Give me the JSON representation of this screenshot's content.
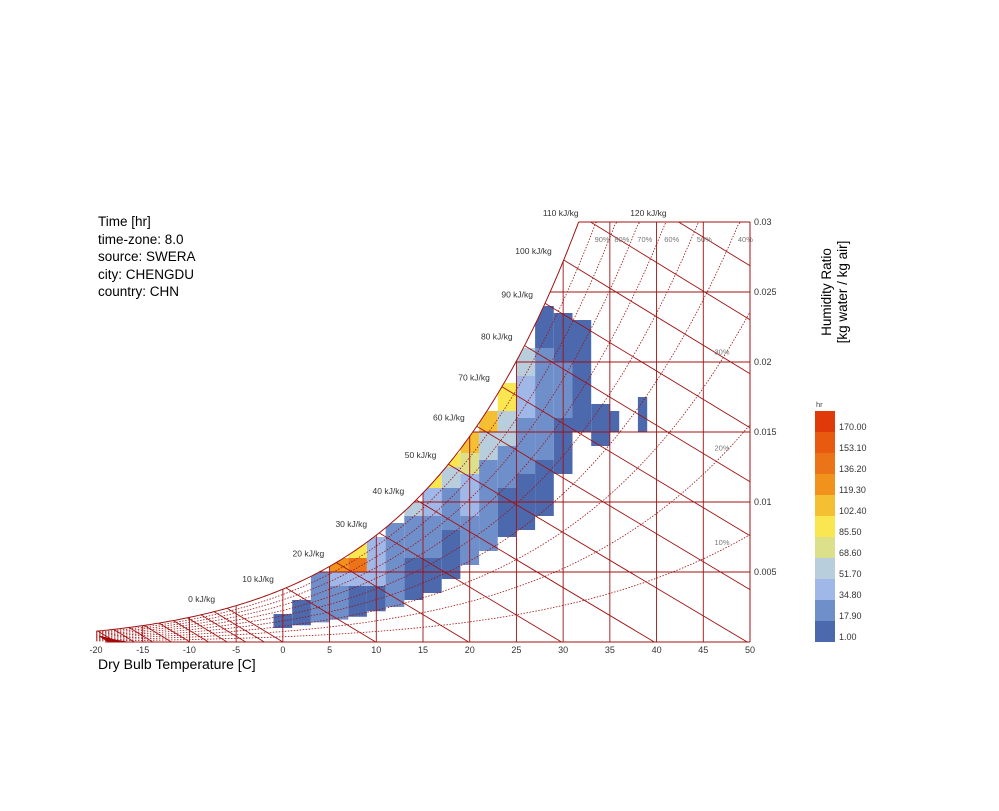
{
  "info": {
    "line1": "Time [hr]",
    "line2": "time-zone: 8.0",
    "line3": "source: SWERA",
    "line4": "city: CHENGDU",
    "line5": "country: CHN"
  },
  "chart_data": {
    "type": "heatmap",
    "title": "Time [hr]",
    "xlabel": "Dry Bulb Temperature [C]",
    "ylabel_line1": "Humidity Ratio",
    "ylabel_line2": "[kg water / kg air]",
    "xlim": [
      -20,
      50
    ],
    "ylim": [
      0,
      0.03
    ],
    "x_ticks": [
      -20,
      -15,
      -10,
      -5,
      0,
      5,
      10,
      15,
      20,
      25,
      30,
      35,
      40,
      45,
      50
    ],
    "y_ticks": [
      0.005,
      0.01,
      0.015,
      0.02,
      0.025,
      0.03
    ],
    "y_tick_labels": [
      "0.005",
      "0.01",
      "0.015",
      "0.02",
      "0.025",
      "0.03"
    ],
    "enthalpy_lines": [
      {
        "value": 0,
        "label": "0 kJ/kg"
      },
      {
        "value": 10,
        "label": "10 kJ/kg"
      },
      {
        "value": 20,
        "label": "20 kJ/kg"
      },
      {
        "value": 30,
        "label": "30 kJ/kg"
      },
      {
        "value": 40,
        "label": "40 kJ/kg"
      },
      {
        "value": 50,
        "label": "50 kJ/kg"
      },
      {
        "value": 60,
        "label": "60 kJ/kg"
      },
      {
        "value": 70,
        "label": "70 kJ/kg"
      },
      {
        "value": 80,
        "label": "80 kJ/kg"
      },
      {
        "value": 90,
        "label": "90 kJ/kg"
      },
      {
        "value": 100,
        "label": "100 kJ/kg"
      },
      {
        "value": 110,
        "label": "110 kJ/kg"
      },
      {
        "value": 120,
        "label": "120 kJ/kg"
      }
    ],
    "rh_curves": [
      10,
      20,
      30,
      40,
      50,
      60,
      70,
      80,
      90,
      100
    ],
    "rh_labels": [
      {
        "rh": 90,
        "label": "90%"
      },
      {
        "rh": 80,
        "label": "80%"
      },
      {
        "rh": 70,
        "label": "70%"
      },
      {
        "rh": 60,
        "label": "60%"
      },
      {
        "rh": 50,
        "label": "50%"
      },
      {
        "rh": 40,
        "label": "40%"
      },
      {
        "rh": 30,
        "label": "30%"
      },
      {
        "rh": 20,
        "label": "20%"
      },
      {
        "rh": 10,
        "label": "10%"
      }
    ],
    "legend": {
      "title": "hr",
      "placement": "right",
      "values": [
        "170.00",
        "153.10",
        "136.20",
        "119.30",
        "102.40",
        "85.50",
        "68.60",
        "51.70",
        "34.80",
        "17.90",
        "1.00"
      ],
      "colors": [
        "#e13a0a",
        "#e85a10",
        "#ec7418",
        "#f0921c",
        "#f5bf34",
        "#f9e650",
        "#dce08a",
        "#b9cedc",
        "#9fb8e8",
        "#6f8fcb",
        "#4c69ad"
      ]
    },
    "cells": [
      {
        "tmin": -1,
        "tmax": 1,
        "wmin": 0.001,
        "wmax": 0.002,
        "hours": 8
      },
      {
        "tmin": 1,
        "tmax": 3,
        "wmin": 0.0012,
        "wmax": 0.003,
        "hours": 12
      },
      {
        "tmin": 3,
        "tmax": 5,
        "wmin": 0.0014,
        "wmax": 0.004,
        "hours": 20
      },
      {
        "tmin": 3,
        "tmax": 5,
        "wmin": 0.004,
        "wmax": 0.005,
        "hours": 28
      },
      {
        "tmin": 5,
        "tmax": 7,
        "wmin": 0.0016,
        "wmax": 0.004,
        "hours": 18
      },
      {
        "tmin": 5,
        "tmax": 7,
        "wmin": 0.004,
        "wmax": 0.005,
        "hours": 45
      },
      {
        "tmin": 5,
        "tmax": 7,
        "wmin": 0.005,
        "wmax": 0.006,
        "hours": 120
      },
      {
        "tmin": 7,
        "tmax": 9,
        "wmin": 0.0018,
        "wmax": 0.004,
        "hours": 16
      },
      {
        "tmin": 7,
        "tmax": 9,
        "wmin": 0.004,
        "wmax": 0.005,
        "hours": 40
      },
      {
        "tmin": 7,
        "tmax": 9,
        "wmin": 0.005,
        "wmax": 0.006,
        "hours": 150
      },
      {
        "tmin": 7,
        "tmax": 9,
        "wmin": 0.006,
        "wmax": 0.007,
        "hours": 90
      },
      {
        "tmin": 9,
        "tmax": 11,
        "wmin": 0.0022,
        "wmax": 0.004,
        "hours": 12
      },
      {
        "tmin": 9,
        "tmax": 11,
        "wmin": 0.004,
        "wmax": 0.006,
        "hours": 35
      },
      {
        "tmin": 9,
        "tmax": 11,
        "wmin": 0.006,
        "wmax": 0.0075,
        "hours": 40
      },
      {
        "tmin": 11,
        "tmax": 13,
        "wmin": 0.0025,
        "wmax": 0.005,
        "hours": 20
      },
      {
        "tmin": 11,
        "tmax": 13,
        "wmin": 0.005,
        "wmax": 0.007,
        "hours": 30
      },
      {
        "tmin": 11,
        "tmax": 13,
        "wmin": 0.007,
        "wmax": 0.0085,
        "hours": 25
      },
      {
        "tmin": 13,
        "tmax": 15,
        "wmin": 0.003,
        "wmax": 0.006,
        "hours": 15
      },
      {
        "tmin": 13,
        "tmax": 15,
        "wmin": 0.006,
        "wmax": 0.009,
        "hours": 28
      },
      {
        "tmin": 13,
        "tmax": 15,
        "wmin": 0.009,
        "wmax": 0.01,
        "hours": 60
      },
      {
        "tmin": 15,
        "tmax": 17,
        "wmin": 0.0035,
        "wmax": 0.006,
        "hours": 10
      },
      {
        "tmin": 15,
        "tmax": 17,
        "wmin": 0.006,
        "wmax": 0.009,
        "hours": 25
      },
      {
        "tmin": 15,
        "tmax": 17,
        "wmin": 0.009,
        "wmax": 0.011,
        "hours": 40
      },
      {
        "tmin": 15,
        "tmax": 17,
        "wmin": 0.011,
        "wmax": 0.012,
        "hours": 95
      },
      {
        "tmin": 17,
        "tmax": 19,
        "wmin": 0.0045,
        "wmax": 0.008,
        "hours": 15
      },
      {
        "tmin": 17,
        "tmax": 19,
        "wmin": 0.008,
        "wmax": 0.011,
        "hours": 30
      },
      {
        "tmin": 17,
        "tmax": 19,
        "wmin": 0.011,
        "wmax": 0.0125,
        "hours": 60
      },
      {
        "tmin": 17,
        "tmax": 19,
        "wmin": 0.0125,
        "wmax": 0.0135,
        "hours": 100
      },
      {
        "tmin": 19,
        "tmax": 21,
        "wmin": 0.0055,
        "wmax": 0.009,
        "hours": 20
      },
      {
        "tmin": 19,
        "tmax": 21,
        "wmin": 0.009,
        "wmax": 0.012,
        "hours": 35
      },
      {
        "tmin": 19,
        "tmax": 21,
        "wmin": 0.012,
        "wmax": 0.0135,
        "hours": 70
      },
      {
        "tmin": 19,
        "tmax": 21,
        "wmin": 0.0135,
        "wmax": 0.015,
        "hours": 115
      },
      {
        "tmin": 21,
        "tmax": 23,
        "wmin": 0.0065,
        "wmax": 0.01,
        "hours": 18
      },
      {
        "tmin": 21,
        "tmax": 23,
        "wmin": 0.01,
        "wmax": 0.013,
        "hours": 32
      },
      {
        "tmin": 21,
        "tmax": 23,
        "wmin": 0.013,
        "wmax": 0.015,
        "hours": 65
      },
      {
        "tmin": 21,
        "tmax": 23,
        "wmin": 0.015,
        "wmax": 0.0165,
        "hours": 110
      },
      {
        "tmin": 23,
        "tmax": 25,
        "wmin": 0.0075,
        "wmax": 0.011,
        "hours": 15
      },
      {
        "tmin": 23,
        "tmax": 25,
        "wmin": 0.011,
        "wmax": 0.014,
        "hours": 30
      },
      {
        "tmin": 23,
        "tmax": 25,
        "wmin": 0.014,
        "wmax": 0.0165,
        "hours": 55
      },
      {
        "tmin": 23,
        "tmax": 25,
        "wmin": 0.0165,
        "wmax": 0.0185,
        "hours": 100
      },
      {
        "tmin": 25,
        "tmax": 27,
        "wmin": 0.008,
        "wmax": 0.012,
        "hours": 12
      },
      {
        "tmin": 25,
        "tmax": 27,
        "wmin": 0.012,
        "wmax": 0.016,
        "hours": 25
      },
      {
        "tmin": 25,
        "tmax": 27,
        "wmin": 0.016,
        "wmax": 0.019,
        "hours": 40
      },
      {
        "tmin": 25,
        "tmax": 27,
        "wmin": 0.019,
        "wmax": 0.021,
        "hours": 60
      },
      {
        "tmin": 27,
        "tmax": 29,
        "wmin": 0.009,
        "wmax": 0.013,
        "hours": 10
      },
      {
        "tmin": 27,
        "tmax": 29,
        "wmin": 0.013,
        "wmax": 0.017,
        "hours": 22
      },
      {
        "tmin": 27,
        "tmax": 29,
        "wmin": 0.017,
        "wmax": 0.021,
        "hours": 30
      },
      {
        "tmin": 27,
        "tmax": 29,
        "wmin": 0.021,
        "wmax": 0.024,
        "hours": 15
      },
      {
        "tmin": 29,
        "tmax": 31,
        "wmin": 0.012,
        "wmax": 0.016,
        "hours": 10
      },
      {
        "tmin": 29,
        "tmax": 31,
        "wmin": 0.016,
        "wmax": 0.02,
        "hours": 20
      },
      {
        "tmin": 29,
        "tmax": 31,
        "wmin": 0.02,
        "wmax": 0.0235,
        "hours": 12
      },
      {
        "tmin": 31,
        "tmax": 33,
        "wmin": 0.015,
        "wmax": 0.019,
        "hours": 8
      },
      {
        "tmin": 31,
        "tmax": 33,
        "wmin": 0.019,
        "wmax": 0.023,
        "hours": 10
      },
      {
        "tmin": 33,
        "tmax": 35,
        "wmin": 0.014,
        "wmax": 0.017,
        "hours": 5
      },
      {
        "tmin": 35,
        "tmax": 36,
        "wmin": 0.015,
        "wmax": 0.0165,
        "hours": 3
      },
      {
        "tmin": 38,
        "tmax": 39,
        "wmin": 0.015,
        "wmax": 0.0175,
        "hours": 2
      }
    ]
  }
}
